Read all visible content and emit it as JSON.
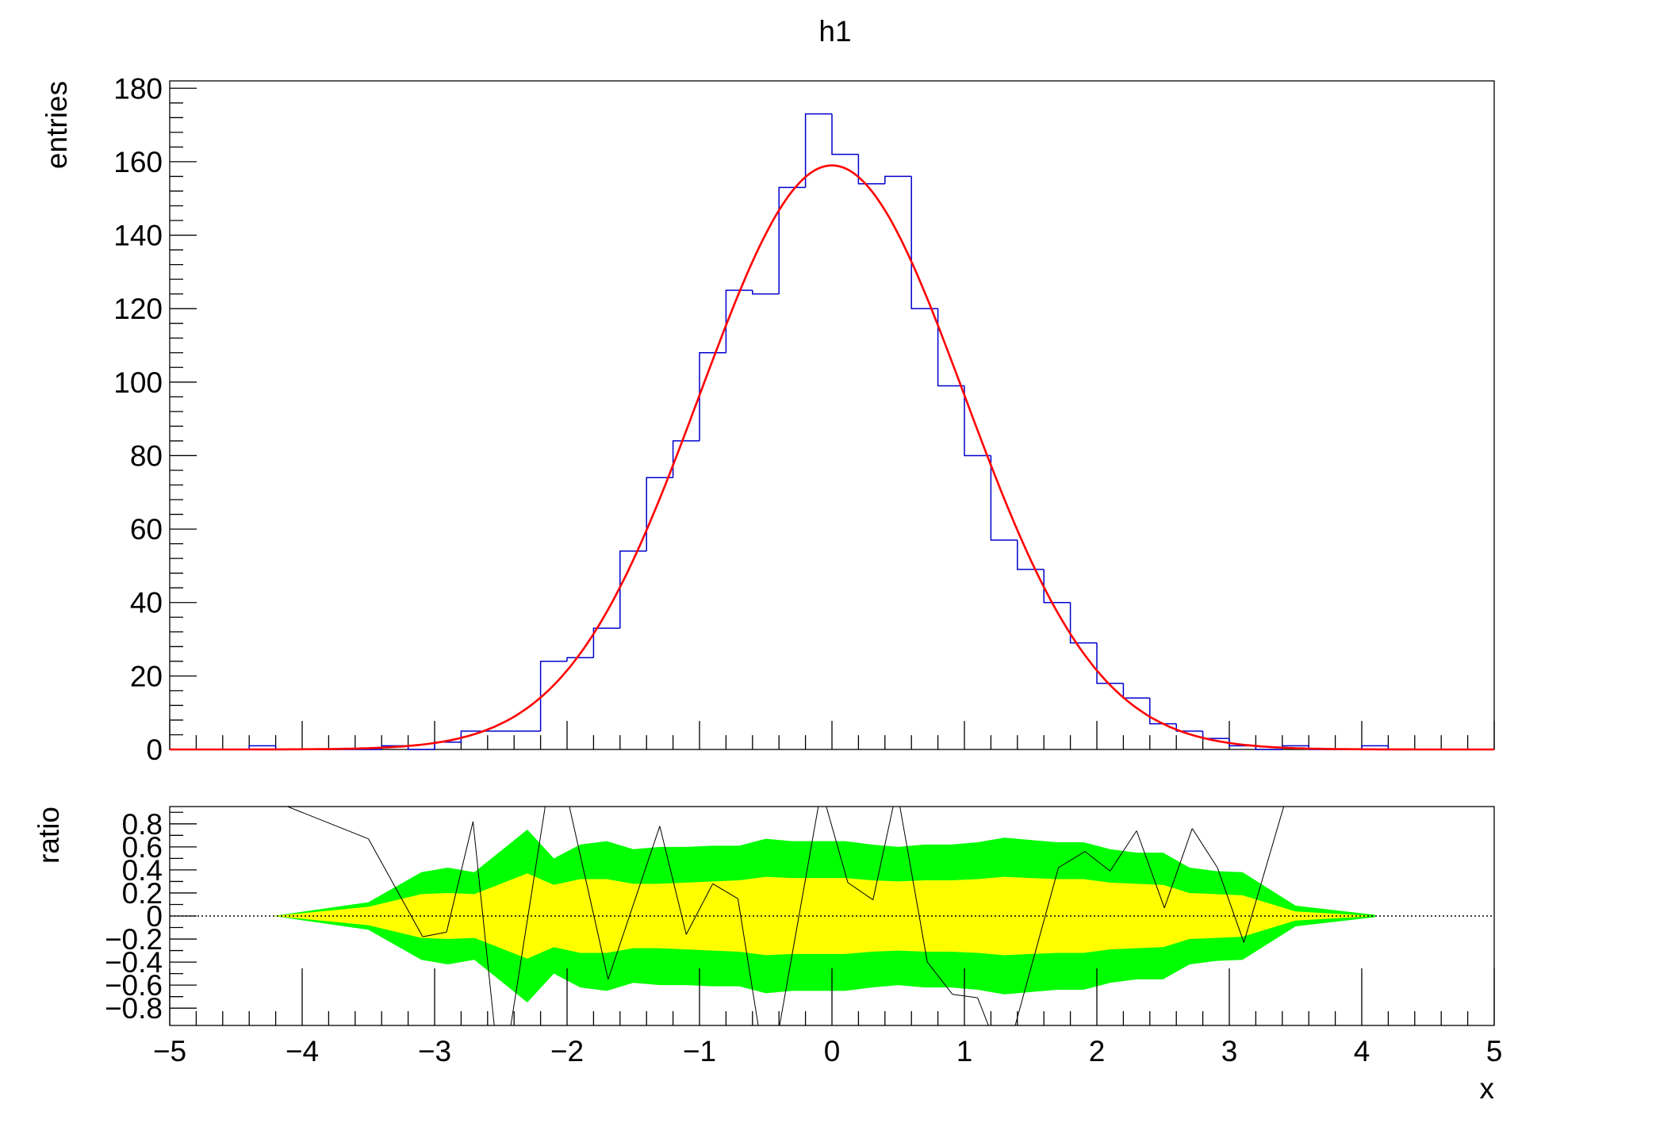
{
  "chart_data": [
    {
      "type": "bar",
      "title": "h1",
      "xlabel": "",
      "ylabel": "entries",
      "xlim": [
        -5,
        5
      ],
      "ylim": [
        0,
        182
      ],
      "bin_width": 0.2,
      "bin_edges_start": -5,
      "yticks": [
        "0",
        "20",
        "40",
        "60",
        "80",
        "100",
        "120",
        "140",
        "160",
        "180"
      ],
      "series": [
        {
          "style": "step-histogram",
          "color": "#0000cc",
          "values": [
            0,
            0,
            0,
            1,
            0,
            0,
            0,
            0,
            1,
            0,
            2,
            5,
            5,
            5,
            24,
            25,
            33,
            54,
            74,
            84,
            108,
            125,
            124,
            153,
            173,
            162,
            154,
            156,
            120,
            99,
            80,
            57,
            49,
            40,
            29,
            18,
            14,
            7,
            5,
            3,
            1,
            0,
            1,
            0,
            0,
            1,
            0,
            0,
            0,
            0
          ]
        },
        {
          "style": "fit-curve",
          "color": "#ff0000",
          "function": "gaus",
          "constant": 159,
          "mean": 0,
          "sigma": 1.0
        }
      ]
    },
    {
      "type": "area",
      "xlabel": "x",
      "ylabel": "ratio",
      "xlim": [
        -5,
        5
      ],
      "ylim": [
        -0.95,
        0.95
      ],
      "xticks": [
        "−5",
        "−4",
        "−3",
        "−2",
        "−1",
        "0",
        "1",
        "2",
        "3",
        "4",
        "5"
      ],
      "yticks": [
        "0.8",
        "0.6",
        "0.4",
        "0.2",
        "0",
        "−0.2",
        "−0.4",
        "−0.6",
        "−0.8"
      ],
      "reference_line": 0,
      "bands": {
        "x": [
          -4.22,
          -3.5,
          -3.1,
          -2.9,
          -2.7,
          -2.3,
          -2.1,
          -1.9,
          -1.7,
          -1.5,
          -1.3,
          -1.1,
          -0.9,
          -0.7,
          -0.5,
          -0.3,
          -0.1,
          0.1,
          0.3,
          0.5,
          0.7,
          0.9,
          1.1,
          1.3,
          1.5,
          1.7,
          1.9,
          2.1,
          2.3,
          2.5,
          2.7,
          2.9,
          3.1,
          3.5,
          4.1
        ],
        "one_sigma": [
          0,
          0.08,
          0.19,
          0.2,
          0.19,
          0.37,
          0.27,
          0.32,
          0.32,
          0.28,
          0.28,
          0.29,
          0.3,
          0.31,
          0.34,
          0.33,
          0.33,
          0.33,
          0.31,
          0.3,
          0.31,
          0.31,
          0.32,
          0.34,
          0.33,
          0.32,
          0.32,
          0.29,
          0.28,
          0.27,
          0.2,
          0.19,
          0.18,
          0.04,
          0
        ],
        "two_sigma": [
          0,
          0.12,
          0.38,
          0.42,
          0.38,
          0.75,
          0.5,
          0.62,
          0.65,
          0.58,
          0.6,
          0.6,
          0.61,
          0.61,
          0.67,
          0.65,
          0.65,
          0.65,
          0.62,
          0.6,
          0.62,
          0.62,
          0.64,
          0.68,
          0.66,
          0.64,
          0.64,
          0.58,
          0.55,
          0.55,
          0.42,
          0.39,
          0.38,
          0.09,
          0.01
        ],
        "one_sigma_color": "#ffff00",
        "two_sigma_color": "#00ff00"
      },
      "series": [
        {
          "style": "line",
          "color": "#000000",
          "x": [
            -4.22,
            -3.5,
            -3.09,
            -2.91,
            -2.71,
            -2.5,
            -2.09,
            -1.69,
            -1.3,
            -1.1,
            -0.9,
            -0.71,
            -0.48,
            -0.08,
            0.12,
            0.31,
            0.49,
            0.72,
            0.91,
            1.1,
            1.3,
            1.71,
            1.91,
            2.1,
            2.3,
            2.51,
            2.72,
            2.91,
            3.11,
            3.5
          ],
          "y": [
            1.0,
            0.67,
            -0.18,
            -0.14,
            0.82,
            -1.5,
            1.5,
            -0.55,
            0.78,
            -0.16,
            0.28,
            0.15,
            -1.5,
            1.1,
            0.29,
            0.14,
            1.1,
            -0.4,
            -0.68,
            -0.71,
            -1.3,
            0.42,
            0.56,
            0.39,
            0.74,
            0.07,
            0.76,
            0.42,
            -0.23,
            1.3
          ]
        }
      ]
    }
  ]
}
